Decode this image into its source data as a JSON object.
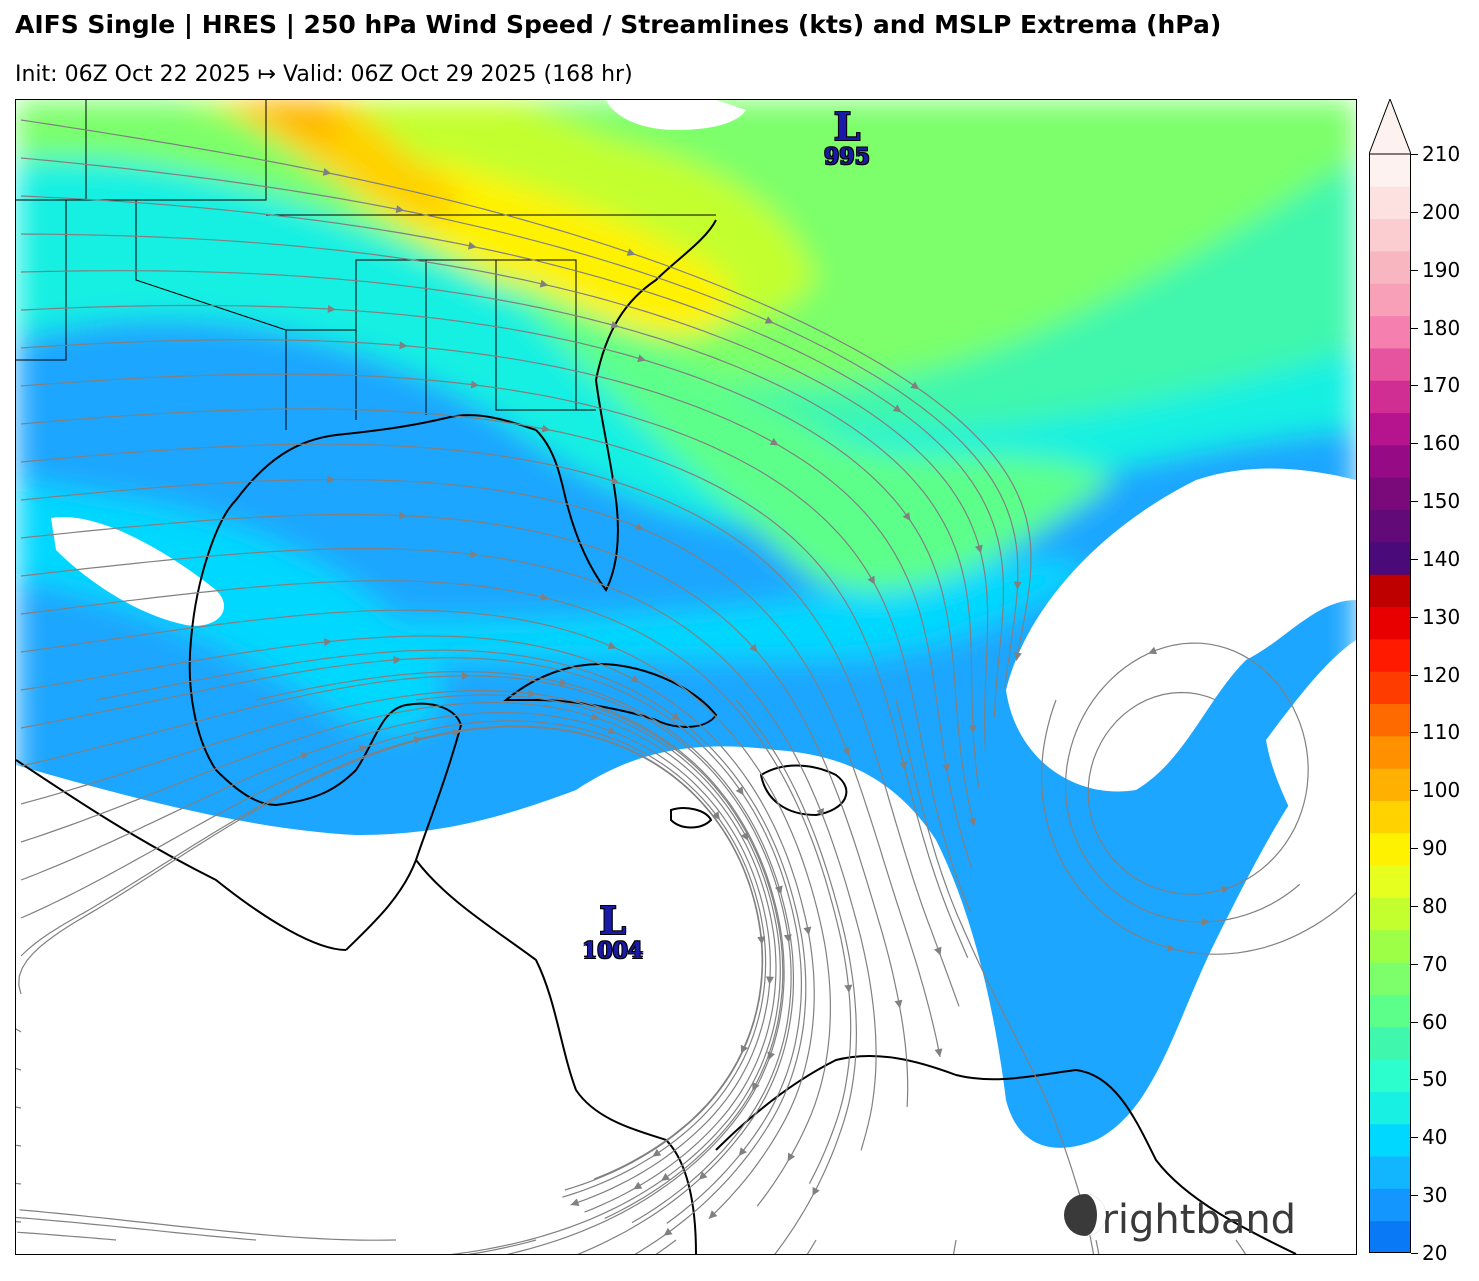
{
  "header": {
    "title": "AIFS Single | HRES | 250 hPa Wind Speed / Streamlines (kts) and MSLP Extrema (hPa)",
    "subtitle": "Init: 06Z Oct 22 2025 ↦ Valid: 06Z Oct 29 2025 (168 hr)"
  },
  "map": {
    "pressure_lows": [
      {
        "letter": "L",
        "value": "995"
      },
      {
        "letter": "L",
        "value": "1004"
      }
    ],
    "streamline_color": "#808080",
    "coastline_color": "#000000"
  },
  "colorbar": {
    "levels": [
      "20",
      "30",
      "40",
      "50",
      "60",
      "70",
      "80",
      "90",
      "100",
      "110",
      "120",
      "130",
      "140",
      "150",
      "160",
      "170",
      "180",
      "190",
      "200",
      "210"
    ],
    "colors": [
      "#0a79f5",
      "#1496ff",
      "#12b6ff",
      "#00d8ff",
      "#17f0e2",
      "#2cffcd",
      "#3ff7ad",
      "#5dff8b",
      "#7cff6a",
      "#9eff47",
      "#c3ff2e",
      "#e6ff1e",
      "#fff200",
      "#ffd200",
      "#ffb000",
      "#ff9000",
      "#ff6a00",
      "#ff3c00",
      "#ff1a00",
      "#e80000",
      "#bf0000",
      "#4a0a7a",
      "#610a78",
      "#7a0a7a",
      "#960a86",
      "#b5148e",
      "#d12e94",
      "#e6539f",
      "#f57fae",
      "#f7a0b8",
      "#f8b6c0",
      "#fbcdd0",
      "#fde0e0",
      "#fdf2ef"
    ],
    "extend_arrow": true
  },
  "branding": {
    "name": "Brightband",
    "logo": "brightband-logo-icon"
  }
}
